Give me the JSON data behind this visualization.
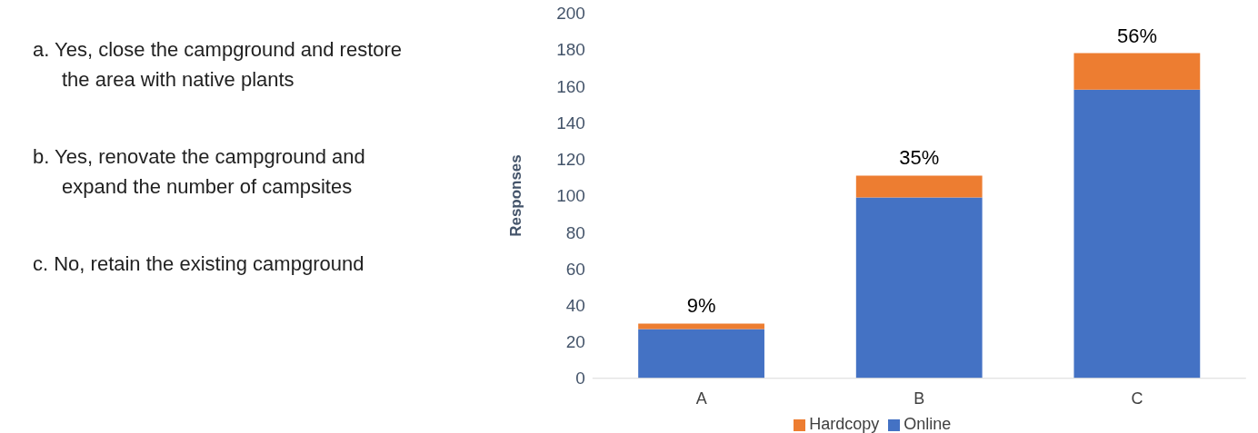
{
  "chart_data": {
    "type": "bar",
    "stacked": true,
    "ylabel": "Responses",
    "categories": [
      "A",
      "B",
      "C"
    ],
    "series": [
      {
        "name": "Online",
        "color": "#4472c4",
        "values": [
          27,
          99,
          158
        ]
      },
      {
        "name": "Hardcopy",
        "color": "#ed7d31",
        "values": [
          3,
          12,
          20
        ]
      }
    ],
    "ylim": [
      0,
      200
    ],
    "yticks": [
      0,
      20,
      40,
      60,
      80,
      100,
      120,
      140,
      160,
      180,
      200
    ],
    "grid": false,
    "legend": "bottom",
    "annotations": [
      "a. Yes, close the campground and restore the area with native plants",
      "b. Yes, renovate the campground and expand the number of campsites",
      "c. No, retain the existing campground",
      {
        "text": "9%",
        "x": "A",
        "y": 30
      },
      {
        "text": "35%",
        "x": "B",
        "y": 111
      },
      {
        "text": "56%",
        "x": "C",
        "y": 178
      }
    ]
  }
}
